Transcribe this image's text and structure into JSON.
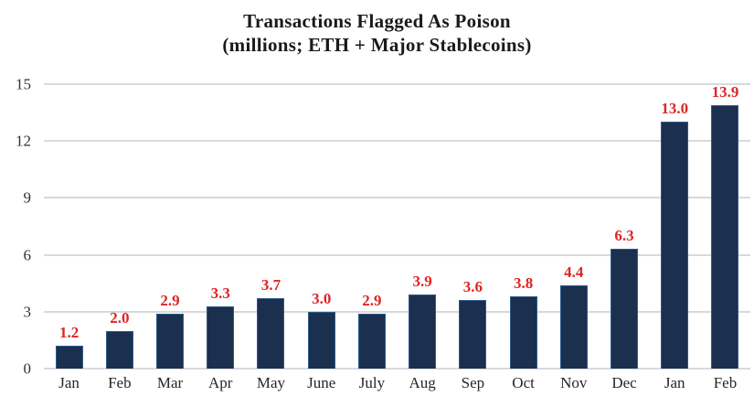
{
  "chart_data": {
    "type": "bar",
    "title": "Transactions Flagged As Poison",
    "subtitle": "(millions; ETH + Major Stablecoins)",
    "categories": [
      "Jan",
      "Feb",
      "Mar",
      "Apr",
      "May",
      "June",
      "July",
      "Aug",
      "Sep",
      "Oct",
      "Nov",
      "Dec",
      "Jan",
      "Feb"
    ],
    "values": [
      1.2,
      2.0,
      2.9,
      3.3,
      3.7,
      3.0,
      2.9,
      3.9,
      3.6,
      3.8,
      4.4,
      6.3,
      13.0,
      13.9
    ],
    "value_labels": [
      "1.2",
      "2.0",
      "2.9",
      "3.3",
      "3.7",
      "3.0",
      "2.9",
      "3.9",
      "3.6",
      "3.8",
      "4.4",
      "6.3",
      "13.0",
      "13.9"
    ],
    "xlabel": "",
    "ylabel": "",
    "ylim": [
      0,
      15
    ],
    "yticks": [
      0,
      3,
      6,
      9,
      12,
      15
    ],
    "grid": "horizontal",
    "legend": "none",
    "colors": {
      "bar_fill": "#1b2f4e",
      "bar_border": "#2e5c8c",
      "data_label": "#e02424",
      "gridline": "#d9d9d9",
      "axis_text": "#333333",
      "title_text": "#1a1a1a",
      "background": "#ffffff"
    }
  }
}
